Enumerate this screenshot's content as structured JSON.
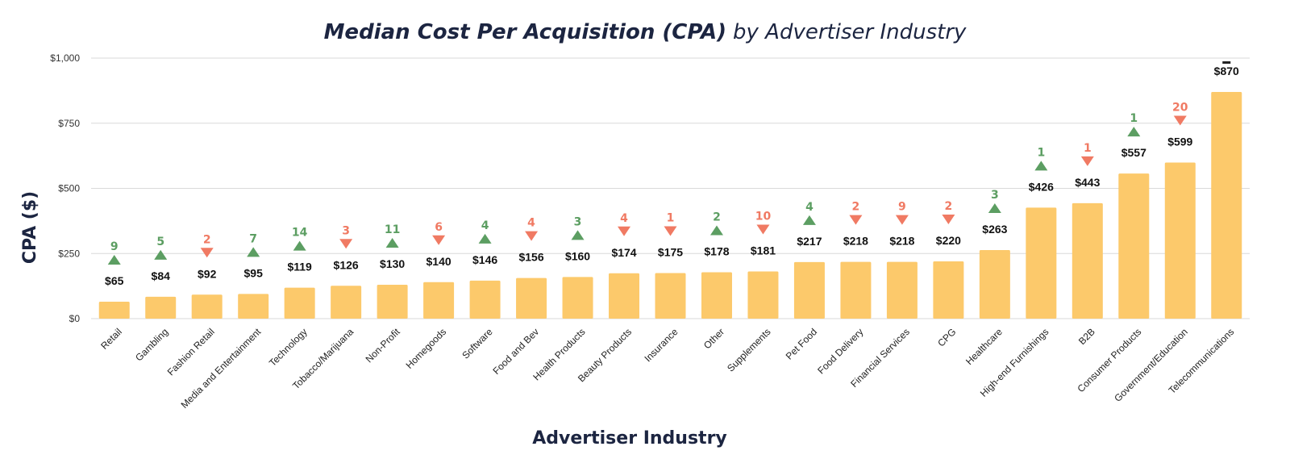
{
  "chart_data": {
    "type": "bar",
    "title_bold": "Median Cost Per Acquisition (CPA)",
    "title_rest": "by Advertiser Industry",
    "xlabel": "Advertiser Industry",
    "ylabel": "CPA ($)",
    "ylim": [
      0,
      1000
    ],
    "yticks": [
      0,
      250,
      500,
      750,
      1000
    ],
    "ytick_labels": [
      "$0",
      "$250",
      "$500",
      "$750",
      "$1,000"
    ],
    "grid": true,
    "colors": {
      "bar": "#fcc96b",
      "up": "#5c9e62",
      "down": "#f07a63",
      "neutral": "#222222",
      "title": "#1c2541"
    },
    "categories": [
      "Retail",
      "Gambling",
      "Fashion Retail",
      "Media and Entertainment",
      "Technology",
      "Tobacco/Marijuana",
      "Non-Profit",
      "Homegoods",
      "Software",
      "Food and Bev",
      "Health Products",
      "Beauty Products",
      "Insurance",
      "Other",
      "Supplements",
      "Pet Food",
      "Food Delivery",
      "Financial Services",
      "CPG",
      "Healthcare",
      "High-end Furnishings",
      "B2B",
      "Consumer Products",
      "Government/Education",
      "Telecommunications"
    ],
    "values": [
      65,
      84,
      92,
      95,
      119,
      126,
      130,
      140,
      146,
      156,
      160,
      174,
      175,
      178,
      181,
      217,
      218,
      218,
      220,
      263,
      426,
      443,
      557,
      599,
      870
    ],
    "value_labels": [
      "$65",
      "$84",
      "$92",
      "$95",
      "$119",
      "$126",
      "$130",
      "$140",
      "$146",
      "$156",
      "$160",
      "$174",
      "$175",
      "$178",
      "$181",
      "$217",
      "$218",
      "$218",
      "$220",
      "$263",
      "$426",
      "$443",
      "$557",
      "$599",
      "$870"
    ],
    "rank_changes": [
      {
        "label": "9",
        "direction": "up"
      },
      {
        "label": "5",
        "direction": "up"
      },
      {
        "label": "2",
        "direction": "down"
      },
      {
        "label": "7",
        "direction": "up"
      },
      {
        "label": "14",
        "direction": "up"
      },
      {
        "label": "3",
        "direction": "down"
      },
      {
        "label": "11",
        "direction": "up"
      },
      {
        "label": "6",
        "direction": "down"
      },
      {
        "label": "4",
        "direction": "up"
      },
      {
        "label": "4",
        "direction": "down"
      },
      {
        "label": "3",
        "direction": "up"
      },
      {
        "label": "4",
        "direction": "down"
      },
      {
        "label": "1",
        "direction": "down"
      },
      {
        "label": "2",
        "direction": "up"
      },
      {
        "label": "10",
        "direction": "down"
      },
      {
        "label": "4",
        "direction": "up"
      },
      {
        "label": "2",
        "direction": "down"
      },
      {
        "label": "9",
        "direction": "down"
      },
      {
        "label": "2",
        "direction": "down"
      },
      {
        "label": "3",
        "direction": "up"
      },
      {
        "label": "1",
        "direction": "up"
      },
      {
        "label": "1",
        "direction": "down"
      },
      {
        "label": "1",
        "direction": "up"
      },
      {
        "label": "20",
        "direction": "down"
      },
      {
        "label": "",
        "direction": "neutral"
      }
    ]
  }
}
